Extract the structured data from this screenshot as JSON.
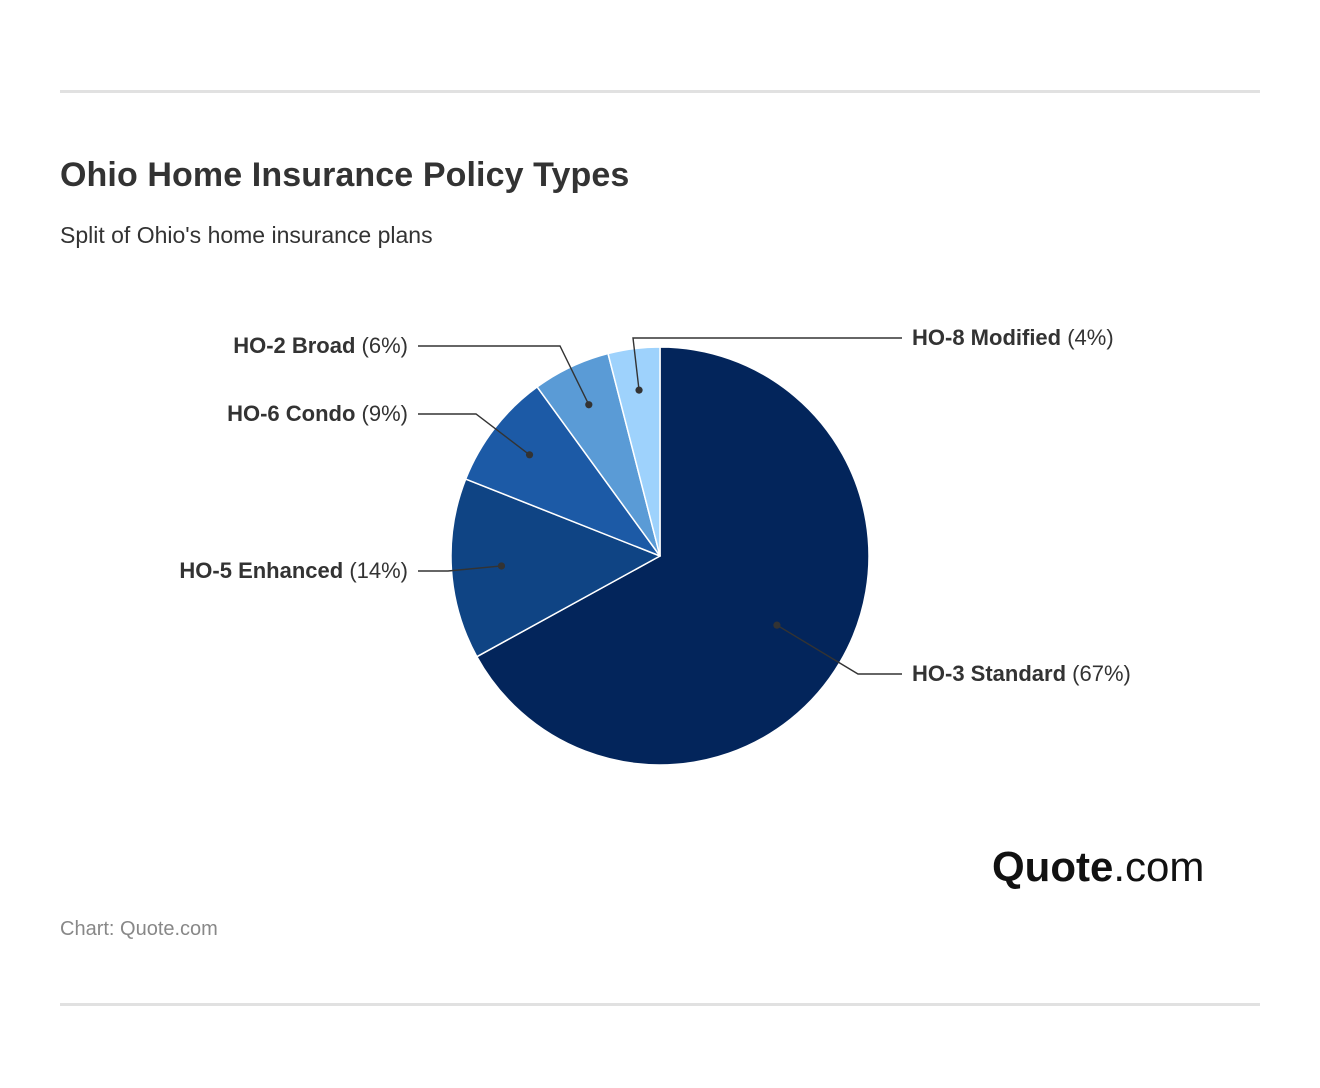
{
  "header": {
    "title": "Ohio Home Insurance Policy Types",
    "subtitle": "Split of Ohio's home insurance plans"
  },
  "chart_data": {
    "type": "pie",
    "title": "Ohio Home Insurance Policy Types",
    "subtitle": "Split of Ohio's home insurance plans",
    "slices": [
      {
        "label": "HO-3 Standard",
        "value": 67,
        "display": "(67%)",
        "color": "#03255b"
      },
      {
        "label": "HO-5 Enhanced",
        "value": 14,
        "display": "(14%)",
        "color": "#0f4484"
      },
      {
        "label": "HO-6 Condo",
        "value": 9,
        "display": "(9%)",
        "color": "#1c5aa6"
      },
      {
        "label": "HO-2 Broad",
        "value": 6,
        "display": "(6%)",
        "color": "#5a9bd6"
      },
      {
        "label": "HO-8 Modified",
        "value": 4,
        "display": "(4%)",
        "color": "#9ed2fc"
      }
    ],
    "start": "12 o'clock",
    "direction": "clockwise"
  },
  "branding": {
    "logo_brand": "Quote",
    "logo_tld": ".com"
  },
  "footer": {
    "source": "Chart: Quote.com"
  }
}
